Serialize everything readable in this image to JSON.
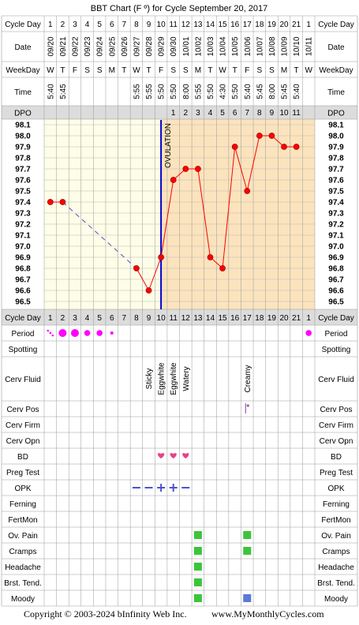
{
  "title": "BBT Chart (F º) for Cycle September 20, 2017",
  "footer": {
    "copyright": "Copyright © 2003-2024 bInfinity Web Inc.",
    "site": "www.MyMonthlyCycles.com"
  },
  "row_labels": {
    "cycle_day": "Cycle Day",
    "date": "Date",
    "weekday": "WeekDay",
    "time": "Time",
    "dpo": "DPO",
    "period": "Period",
    "spotting": "Spotting",
    "cerv_fluid": "Cerv Fluid",
    "cerv_pos": "Cerv Pos",
    "cerv_firm": "Cerv Firm",
    "cerv_opn": "Cerv Opn",
    "bd": "BD",
    "preg_test": "Preg Test",
    "opk": "OPK",
    "ferning": "Ferning",
    "fertmon": "FertMon",
    "ov_pain": "Ov. Pain",
    "cramps": "Cramps",
    "headache": "Headache",
    "brst_tend": "Brst. Tend.",
    "moody": "Moody"
  },
  "ovulation_label": "OVULATION",
  "colors": {
    "follicular": "#fdfde8",
    "luteal": "#fbe3bd",
    "line": "#ff0000",
    "ovulation": "#0000cc",
    "period": "#ff00ff",
    "heart": "#e8418a",
    "opk": "#5050cc",
    "green_marker": "#3cc43c",
    "blue_marker": "#5b79d6"
  },
  "chart_data": {
    "type": "line",
    "title": "BBT Chart (F º) for Cycle September 20, 2017",
    "cycle_days": [
      "1",
      "2",
      "3",
      "4",
      "5",
      "6",
      "7",
      "8",
      "9",
      "10",
      "11",
      "12",
      "13",
      "14",
      "15",
      "16",
      "17",
      "18",
      "19",
      "20",
      "21",
      "1"
    ],
    "dates": [
      "09/20",
      "09/21",
      "09/22",
      "09/23",
      "09/24",
      "09/25",
      "09/26",
      "09/27",
      "09/28",
      "09/29",
      "09/30",
      "10/01",
      "10/02",
      "10/03",
      "10/04",
      "10/05",
      "10/06",
      "10/07",
      "10/08",
      "10/09",
      "10/10",
      "10/11"
    ],
    "weekdays": [
      "W",
      "T",
      "F",
      "S",
      "S",
      "M",
      "T",
      "W",
      "T",
      "F",
      "S",
      "S",
      "M",
      "T",
      "W",
      "T",
      "F",
      "S",
      "S",
      "M",
      "T",
      "W"
    ],
    "times": [
      "5:40",
      "5:45",
      "",
      "",
      "",
      "",
      "",
      "5:55",
      "5:55",
      "5:50",
      "5:50",
      "8:00",
      "5:55",
      "5:50",
      "4:30",
      "5:50",
      "5:40",
      "5:45",
      "8:00",
      "5:45",
      "5:40",
      ""
    ],
    "dpo": [
      "",
      "",
      "",
      "",
      "",
      "",
      "",
      "",
      "",
      "",
      "1",
      "2",
      "3",
      "4",
      "5",
      "6",
      "7",
      "8",
      "9",
      "10",
      "11",
      ""
    ],
    "y_ticks": [
      "98.1",
      "98.0",
      "97.9",
      "97.8",
      "97.7",
      "97.6",
      "97.5",
      "97.4",
      "97.3",
      "97.2",
      "97.1",
      "97.0",
      "96.9",
      "96.8",
      "96.7",
      "96.6",
      "96.5"
    ],
    "ylim": [
      96.5,
      98.1
    ],
    "temperatures": [
      97.4,
      97.4,
      null,
      null,
      null,
      null,
      null,
      96.8,
      96.6,
      96.9,
      97.6,
      97.7,
      97.7,
      96.9,
      96.8,
      97.9,
      97.5,
      98.0,
      98.0,
      97.9,
      97.9,
      null
    ],
    "ovulation_day_index": 9,
    "period": [
      2,
      3,
      3,
      2,
      2,
      1,
      0,
      0,
      0,
      0,
      0,
      0,
      0,
      0,
      0,
      0,
      0,
      0,
      0,
      0,
      0,
      2
    ],
    "cerv_fluid": [
      "",
      "",
      "",
      "",
      "",
      "",
      "",
      "",
      "Sticky",
      "Eggwhite",
      "Eggwhite",
      "Watery",
      "",
      "",
      "",
      "",
      "Creamy",
      "",
      "",
      "",
      "",
      ""
    ],
    "cerv_pos": [
      0,
      0,
      0,
      0,
      0,
      0,
      0,
      0,
      0,
      0,
      0,
      0,
      0,
      0,
      0,
      0,
      1,
      0,
      0,
      0,
      0,
      0
    ],
    "bd": [
      0,
      0,
      0,
      0,
      0,
      0,
      0,
      0,
      0,
      1,
      1,
      1,
      0,
      0,
      0,
      0,
      0,
      0,
      0,
      0,
      0,
      0
    ],
    "opk": [
      "",
      "",
      "",
      "",
      "",
      "",
      "",
      "neg",
      "neg",
      "pos",
      "pos",
      "neg",
      "",
      "",
      "",
      "",
      "",
      "",
      "",
      "",
      "",
      ""
    ],
    "ov_pain": [
      0,
      0,
      0,
      0,
      0,
      0,
      0,
      0,
      0,
      0,
      0,
      0,
      1,
      0,
      0,
      0,
      1,
      0,
      0,
      0,
      0,
      0
    ],
    "cramps": [
      0,
      0,
      0,
      0,
      0,
      0,
      0,
      0,
      0,
      0,
      0,
      0,
      1,
      0,
      0,
      0,
      1,
      0,
      0,
      0,
      0,
      0
    ],
    "headache": [
      0,
      0,
      0,
      0,
      0,
      0,
      0,
      0,
      0,
      0,
      0,
      0,
      1,
      0,
      0,
      0,
      0,
      0,
      0,
      0,
      0,
      0
    ],
    "brst_tend": [
      0,
      0,
      0,
      0,
      0,
      0,
      0,
      0,
      0,
      0,
      0,
      0,
      1,
      0,
      0,
      0,
      0,
      0,
      0,
      0,
      0,
      0
    ],
    "moody": [
      "",
      "",
      "",
      "",
      "",
      "",
      "",
      "",
      "",
      "",
      "",
      "",
      "green",
      "",
      "",
      "",
      "blue",
      "",
      "",
      "",
      "",
      ""
    ]
  }
}
